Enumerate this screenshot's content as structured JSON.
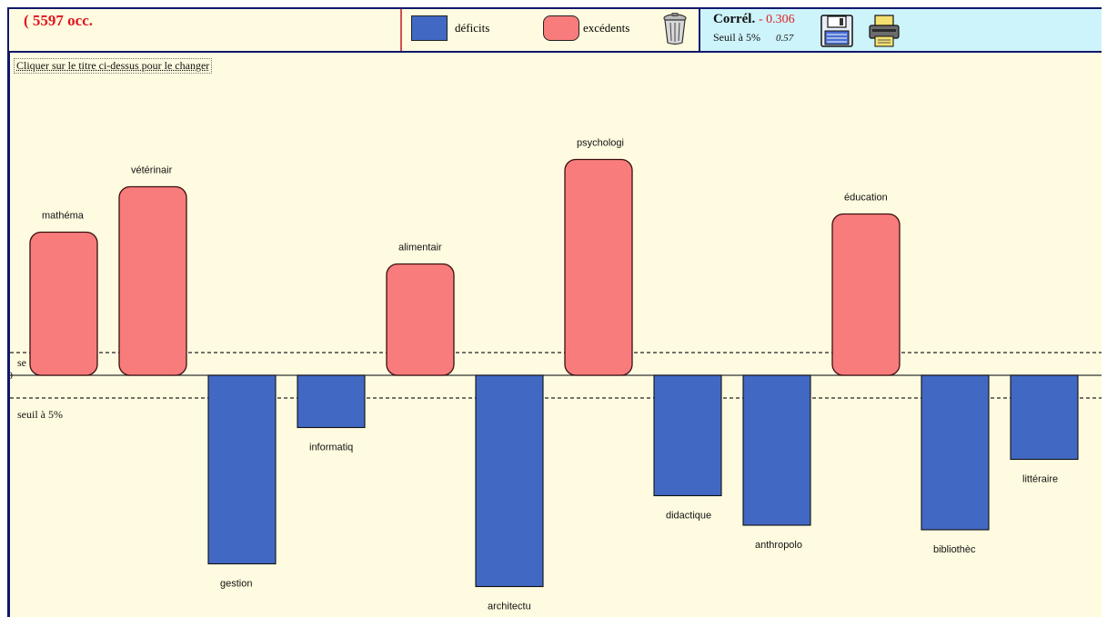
{
  "header": {
    "occurrences": "( 5597 occ.",
    "legend": {
      "deficits_label": "déficits",
      "excedents_label": "excédents"
    },
    "correlation": {
      "label": "Corrél.",
      "value": "- 0.306",
      "seuil_label": "Seuil à 5%",
      "seuil_value": "0.57"
    },
    "icons": {
      "trash": "trash-icon",
      "save": "floppy-disk-icon",
      "print": "printer-icon"
    }
  },
  "hint": "Cliquer sur le titre ci-dessus pour le changer",
  "colors": {
    "deficit": "#4169c4",
    "excedent": "#f87c7c",
    "frame": "#10186a",
    "background": "#fffbe0",
    "corr_panel": "#cdf4fb",
    "occ_text": "#e0141e"
  },
  "chart_data": {
    "type": "bar",
    "categories": [
      "mathéma",
      "vétérinair",
      "gestion",
      "informatiq",
      "alimentair",
      "architectu",
      "psychologi",
      "didactique",
      "anthropolo",
      "éducation",
      "bibliothèc",
      "littéraire"
    ],
    "values": [
      6.3,
      8.3,
      -8.3,
      -2.3,
      4.9,
      -9.3,
      9.5,
      -5.3,
      -6.6,
      7.1,
      -6.8,
      -3.7
    ],
    "zero_label": "0",
    "threshold": 1.0,
    "threshold_label_top": "se",
    "threshold_label_bottom": "seuil à 5%",
    "ylim": [
      -10.5,
      13
    ],
    "legend": [
      "déficits",
      "excédents"
    ]
  }
}
